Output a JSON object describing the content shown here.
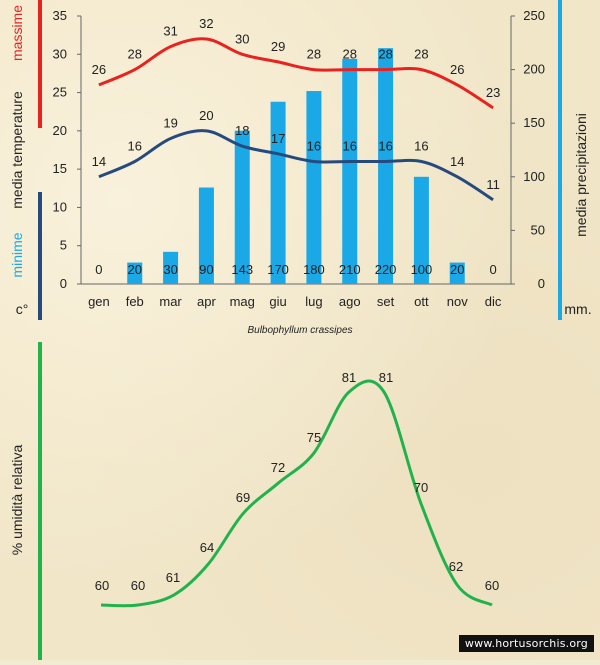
{
  "colors": {
    "max_line": "#e8231f",
    "min_line": "#274a7e",
    "bars": "#1aa8e6",
    "humidity_line": "#21b24c",
    "rain_axis_bar": "#1aa8e6",
    "background": "#f1e6c8"
  },
  "climate_chart": {
    "caption": "Bulbophyllum crassipes",
    "left_labels": {
      "massime": "massime",
      "media_temperature": "media  temperature",
      "minime": "minime",
      "celsius": "c°"
    },
    "right_labels": {
      "media_precipitazioni": "media  precipitazioni",
      "mm": "mm."
    }
  },
  "humidity_chart": {
    "ylabel": "% umidità relativa"
  },
  "watermark": "www.hortusorchis.org",
  "chart_data": [
    {
      "type": "bar",
      "name": "climate",
      "title": "Bulbophyllum crassipes",
      "categories": [
        "gen",
        "feb",
        "mar",
        "apr",
        "mag",
        "giu",
        "lug",
        "ago",
        "set",
        "ott",
        "nov",
        "dic"
      ],
      "y_left": {
        "label": "media temperature c°",
        "ylim": [
          0,
          35
        ],
        "ticks": [
          0,
          5,
          10,
          15,
          20,
          25,
          30,
          35
        ]
      },
      "y_right": {
        "label": "media precipitazioni mm.",
        "ylim": [
          0,
          250
        ],
        "ticks": [
          0,
          50,
          100,
          150,
          200,
          250
        ]
      },
      "series": [
        {
          "name": "precipitazioni",
          "type": "bar",
          "axis": "right",
          "values": [
            0,
            20,
            30,
            90,
            143,
            170,
            180,
            210,
            220,
            100,
            20,
            0
          ]
        },
        {
          "name": "massime",
          "type": "line",
          "axis": "left",
          "values": [
            26,
            28,
            31,
            32,
            30,
            29,
            28,
            28,
            28,
            28,
            26,
            23
          ]
        },
        {
          "name": "minime",
          "type": "line",
          "axis": "left",
          "values": [
            14,
            16,
            19,
            20,
            18,
            17,
            16,
            16,
            16,
            16,
            14,
            11
          ]
        }
      ]
    },
    {
      "type": "line",
      "name": "humidity",
      "ylabel": "% umidità relativa",
      "ylim": [
        55,
        85
      ],
      "series": [
        {
          "name": "umidità relativa",
          "values": [
            60,
            60,
            61,
            64,
            69,
            72,
            75,
            81,
            81,
            70,
            62,
            60
          ]
        }
      ]
    }
  ]
}
